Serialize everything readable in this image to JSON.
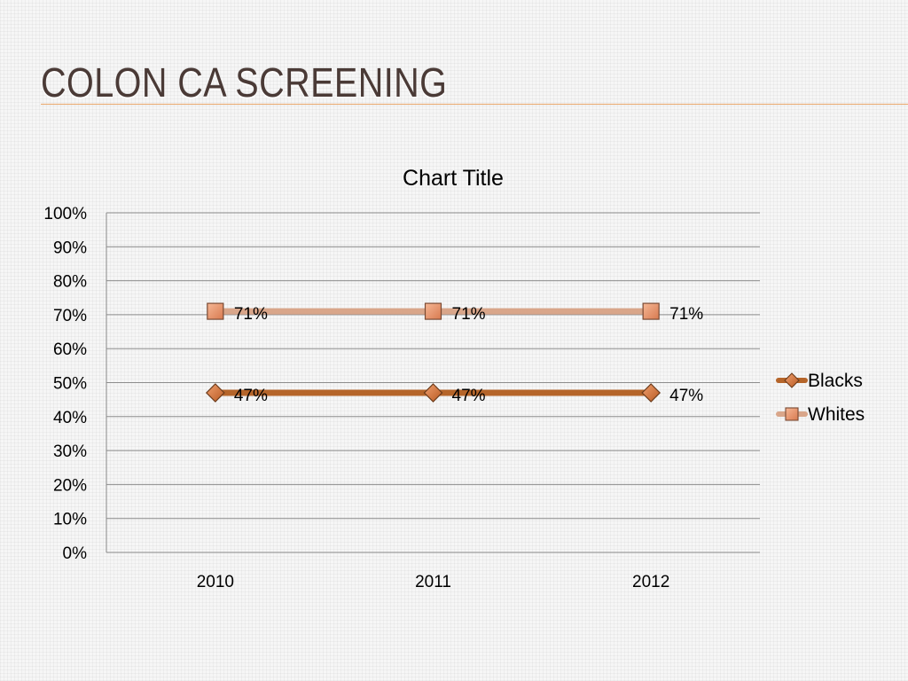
{
  "slide": {
    "title": "COLON CA SCREENING"
  },
  "colors": {
    "accent_rule": "#e8a66a",
    "title_text": "#4a3a36"
  },
  "chart_data": {
    "type": "line",
    "title": "Chart Title",
    "categories": [
      "2010",
      "2011",
      "2012"
    ],
    "series": [
      {
        "name": "Blacks",
        "values": [
          47,
          47,
          47
        ],
        "labels": [
          "47%",
          "47%",
          "47%"
        ],
        "color": "#b5652a",
        "marker": "diamond",
        "marker_color": "#d9743a"
      },
      {
        "name": "Whites",
        "values": [
          71,
          71,
          71
        ],
        "labels": [
          "71%",
          "71%",
          "71%"
        ],
        "color": "#d9a68a",
        "marker": "square",
        "marker_color": "#e8906a"
      }
    ],
    "ylim": [
      0,
      100
    ],
    "yticks": [
      "0%",
      "10%",
      "20%",
      "30%",
      "40%",
      "50%",
      "60%",
      "70%",
      "80%",
      "90%",
      "100%"
    ],
    "grid": true,
    "legend_position": "right"
  }
}
